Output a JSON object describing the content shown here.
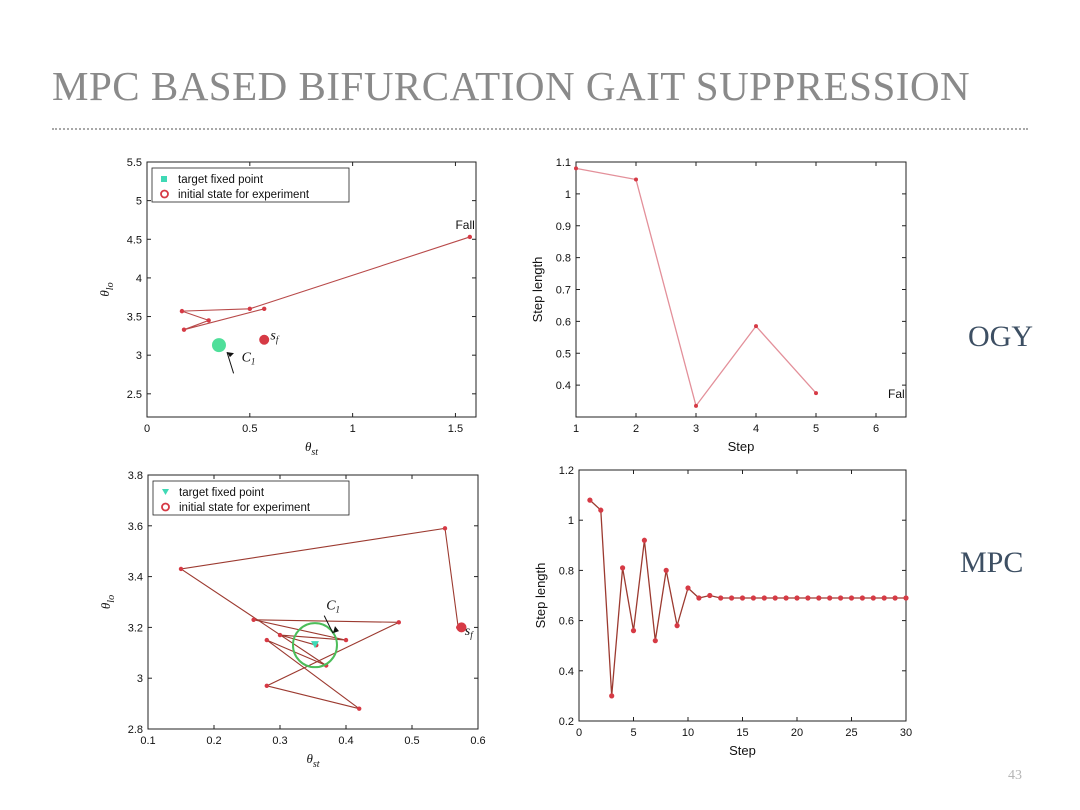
{
  "slide": {
    "title": "MPC BASED BIFURCATION GAIT SUPPRESSION",
    "label_ogy": "OGY",
    "label_mpc": "MPC",
    "page_number": "43"
  },
  "colors": {
    "marker": "#d63a45",
    "path_ogy": "#e3909a",
    "path_mpc": "#9c3a30",
    "target": "#3fd9b5",
    "ring": "#4cbd5a"
  },
  "chart_data": [
    {
      "id": "ogy-state",
      "type": "scatter",
      "xlabel": "θ_st",
      "ylabel": "θ_lo",
      "xlim": [
        0,
        1.6
      ],
      "ylim": [
        2.2,
        5.5
      ],
      "xticks": [
        0,
        0.5,
        1,
        1.5
      ],
      "yticks": [
        2.5,
        3,
        3.5,
        4,
        4.5,
        5,
        5.5
      ],
      "legend": [
        "target fixed point",
        "initial state for experiment"
      ],
      "legend_position": "top-left",
      "path": [
        [
          0.57,
          3.6
        ],
        [
          0.18,
          3.33
        ],
        [
          0.3,
          3.45
        ],
        [
          0.17,
          3.57
        ],
        [
          0.5,
          3.6
        ],
        [
          1.57,
          4.53
        ]
      ],
      "initial_state": [
        0.57,
        3.2
      ],
      "target": [
        0.35,
        3.13
      ],
      "annotations": [
        {
          "text": "Fall",
          "x": 1.5,
          "y": 4.63
        },
        {
          "text": "s_f",
          "x": 0.6,
          "y": 3.2
        },
        {
          "text": "C_1",
          "x": 0.46,
          "y": 2.92
        }
      ]
    },
    {
      "id": "ogy-step",
      "type": "line",
      "xlabel": "Step",
      "ylabel": "Step length",
      "xlim": [
        1,
        6.5
      ],
      "ylim": [
        0.3,
        1.1
      ],
      "xticks": [
        1,
        2,
        3,
        4,
        5,
        6
      ],
      "yticks": [
        0.4,
        0.5,
        0.6,
        0.7,
        0.8,
        0.9,
        1,
        1.1
      ],
      "x": [
        1,
        2,
        3,
        4,
        5
      ],
      "y": [
        1.08,
        1.045,
        0.335,
        0.585,
        0.375
      ],
      "annotations": [
        {
          "text": "Fall",
          "x": 6.2,
          "y": 0.36
        }
      ]
    },
    {
      "id": "mpc-state",
      "type": "scatter",
      "xlabel": "θ_st",
      "ylabel": "θ_lo",
      "xlim": [
        0.1,
        0.6
      ],
      "ylim": [
        2.8,
        3.8
      ],
      "xticks": [
        0.1,
        0.2,
        0.3,
        0.4,
        0.5,
        0.6
      ],
      "yticks": [
        2.8,
        3,
        3.2,
        3.4,
        3.6,
        3.8
      ],
      "legend": [
        "target fixed point",
        "initial state for experiment"
      ],
      "legend_position": "top-left",
      "path": [
        [
          0.57,
          3.2
        ],
        [
          0.55,
          3.59
        ],
        [
          0.15,
          3.43
        ],
        [
          0.37,
          3.05
        ],
        [
          0.28,
          3.15
        ],
        [
          0.42,
          2.88
        ],
        [
          0.28,
          2.97
        ],
        [
          0.48,
          3.22
        ],
        [
          0.26,
          3.23
        ],
        [
          0.4,
          3.15
        ],
        [
          0.3,
          3.17
        ],
        [
          0.355,
          3.13
        ]
      ],
      "initial_state": [
        0.575,
        3.2
      ],
      "target": [
        0.353,
        3.13
      ],
      "annotations": [
        {
          "text": "s_f",
          "x": 0.58,
          "y": 3.17
        },
        {
          "text": "C_1",
          "x": 0.37,
          "y": 3.27
        }
      ]
    },
    {
      "id": "mpc-step",
      "type": "line",
      "xlabel": "Step",
      "ylabel": "Step length",
      "xlim": [
        0,
        30
      ],
      "ylim": [
        0.2,
        1.2
      ],
      "xticks": [
        0,
        5,
        10,
        15,
        20,
        25,
        30
      ],
      "yticks": [
        0.2,
        0.4,
        0.6,
        0.8,
        1,
        1.2
      ],
      "x": [
        1,
        2,
        3,
        4,
        5,
        6,
        7,
        8,
        9,
        10,
        11,
        12,
        13,
        14,
        15,
        16,
        17,
        18,
        19,
        20,
        21,
        22,
        23,
        24,
        25,
        26,
        27,
        28,
        29,
        30
      ],
      "y": [
        1.08,
        1.04,
        0.3,
        0.81,
        0.56,
        0.92,
        0.52,
        0.8,
        0.58,
        0.73,
        0.69,
        0.7,
        0.69,
        0.69,
        0.69,
        0.69,
        0.69,
        0.69,
        0.69,
        0.69,
        0.69,
        0.69,
        0.69,
        0.69,
        0.69,
        0.69,
        0.69,
        0.69,
        0.69,
        0.69
      ]
    }
  ]
}
